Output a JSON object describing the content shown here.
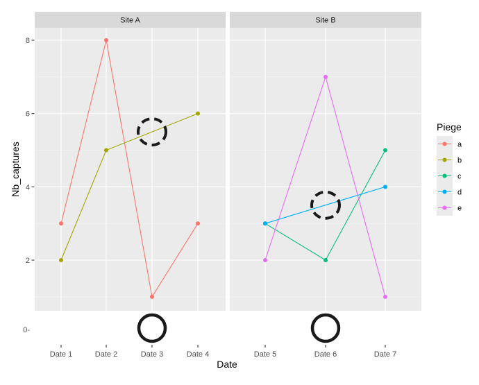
{
  "chart_data": {
    "type": "line",
    "xlabel": "Date",
    "ylabel": "Nb_captures",
    "ylim": [
      0,
      8
    ],
    "y_ticks": [
      "2",
      "4",
      "6",
      "8"
    ],
    "y_zero_label": "0-",
    "grid": true,
    "legend": {
      "title": "Piege",
      "placement": "right",
      "entries": [
        "a",
        "b",
        "c",
        "d",
        "e"
      ]
    },
    "colors": {
      "a": "#F8766D",
      "b": "#A3A500",
      "c": "#00BF7D",
      "d": "#00B0F6",
      "e": "#E76BF3"
    },
    "panels": [
      {
        "strip": "Site A",
        "categories": [
          "Date 1",
          "Date 2",
          "Date 3",
          "Date 4"
        ],
        "series": [
          {
            "name": "a",
            "x": [
              "Date 1",
              "Date 2",
              "Date 3",
              "Date 4"
            ],
            "values": [
              3,
              8,
              1,
              3
            ]
          },
          {
            "name": "b",
            "x": [
              "Date 1",
              "Date 2",
              "Date 4"
            ],
            "values": [
              2,
              5,
              6
            ]
          }
        ]
      },
      {
        "strip": "Site B",
        "categories": [
          "Date 5",
          "Date 6",
          "Date 7"
        ],
        "series": [
          {
            "name": "c",
            "x": [
              "Date 5",
              "Date 6",
              "Date 7"
            ],
            "values": [
              3,
              2,
              5
            ]
          },
          {
            "name": "d",
            "x": [
              "Date 5",
              "Date 7"
            ],
            "values": [
              3,
              4
            ]
          },
          {
            "name": "e",
            "x": [
              "Date 5",
              "Date 6",
              "Date 7"
            ],
            "values": [
              2,
              7,
              1
            ]
          }
        ]
      }
    ],
    "annotations": [
      {
        "kind": "dashed-circle",
        "panel": 0,
        "x": "Date 3",
        "y": 5.5
      },
      {
        "kind": "dashed-circle",
        "panel": 1,
        "x": "Date 6",
        "y": 3.5
      },
      {
        "kind": "solid-circle",
        "panel": 0,
        "x": "Date 3",
        "location": "below-axis"
      },
      {
        "kind": "solid-circle",
        "panel": 1,
        "x": "Date 6",
        "location": "below-axis"
      }
    ]
  }
}
